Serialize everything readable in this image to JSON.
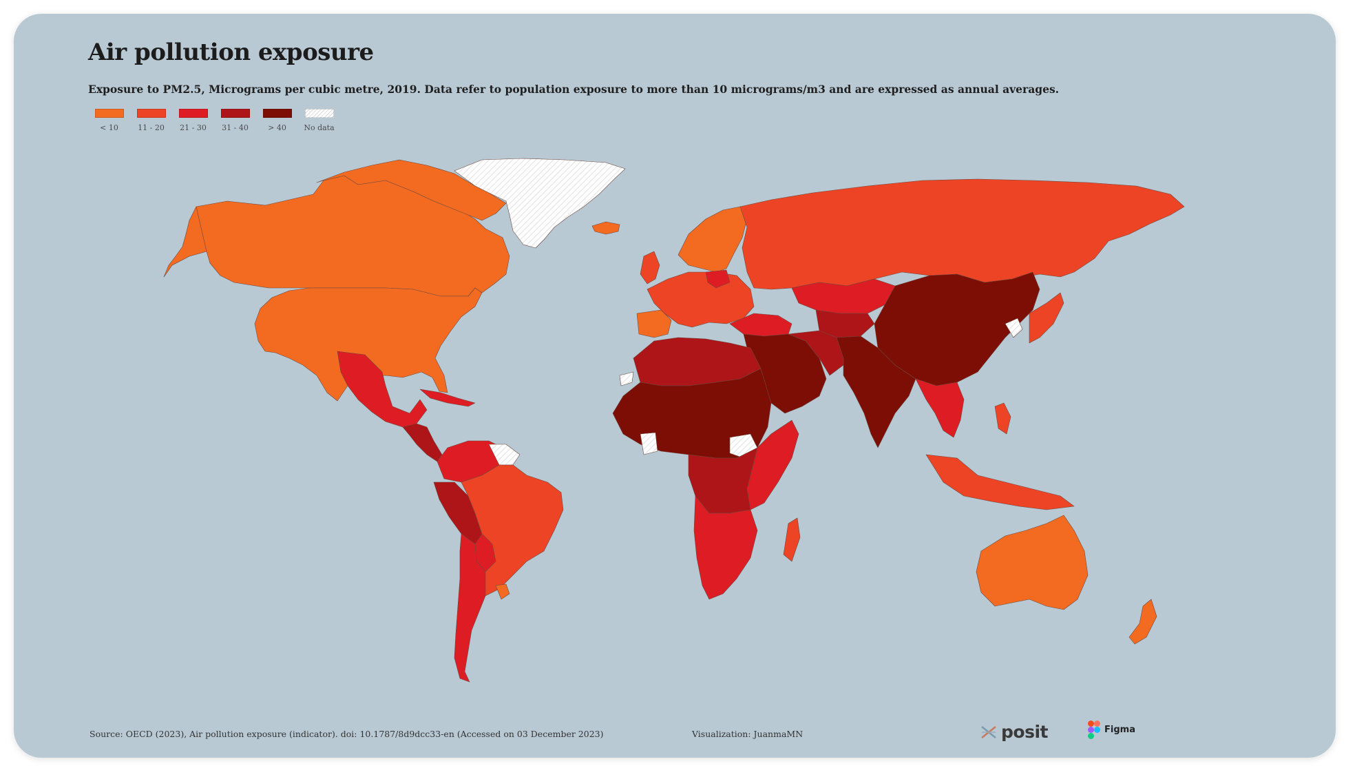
{
  "title": "Air pollution exposure",
  "subtitle": "Exposure to PM2.5, Micrograms per cubic metre, 2019. Data refer to population exposure to more than 10 micrograms/m3 and are expressed as annual averages.",
  "legend": [
    {
      "label": "< 10",
      "color": "#f26b21"
    },
    {
      "label": "11 - 20",
      "color": "#ec4424"
    },
    {
      "label": "21 - 30",
      "color": "#dd1c23"
    },
    {
      "label": "31 - 40",
      "color": "#ad1519"
    },
    {
      "label": "> 40",
      "color": "#7d0e05"
    },
    {
      "label": "No data",
      "color": "#ffffff"
    }
  ],
  "colors": {
    "background": "#b8c9d4",
    "border": "#6d4a40",
    "lt10": "#f26b21",
    "b11_20": "#ec4424",
    "b21_30": "#dd1c23",
    "b31_40": "#ad1519",
    "gt40": "#7d0e05",
    "nodata": "#ffffff"
  },
  "footer": {
    "source": "Source: OECD (2023), Air pollution exposure (indicator). doi: 10.1787/8d9dcc33-en (Accessed on 03 December 2023)",
    "visualization": "Visualization: JuanmaMN",
    "posit_label": "posit",
    "figma_label": "Figma"
  },
  "icons": [
    "posit-logo-icon",
    "figma-logo-icon"
  ]
}
